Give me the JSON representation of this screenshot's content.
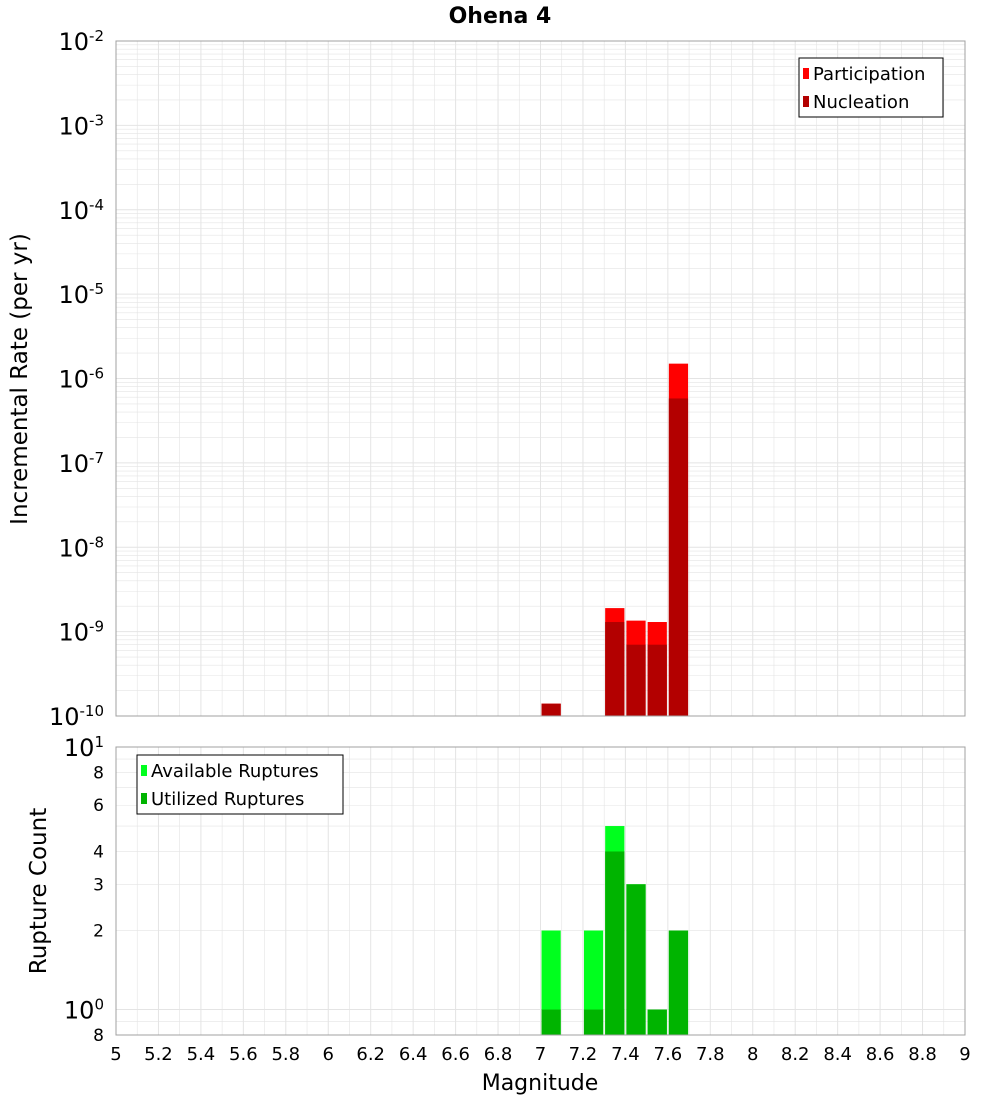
{
  "title": "Ohena 4",
  "colors": {
    "participation": "#ff0000",
    "nucleation": "#b30000",
    "available": "#00ff1e",
    "utilized": "#00b400",
    "grid": "#e4e4e4",
    "frame": "#a0a0a0"
  },
  "xlabel": "Magnitude",
  "chart_data": [
    {
      "type": "bar",
      "title": "Ohena 4",
      "ylabel": "Incremental Rate (per yr)",
      "y_scale": "log",
      "ylim": [
        1e-10,
        0.01
      ],
      "xlim": [
        5,
        9
      ],
      "grid": true,
      "legend_position": "top-right",
      "y_ticks": [
        {
          "base": "10",
          "exp": "-10"
        },
        {
          "base": "10",
          "exp": "-9"
        },
        {
          "base": "10",
          "exp": "-8"
        },
        {
          "base": "10",
          "exp": "-7"
        },
        {
          "base": "10",
          "exp": "-6"
        },
        {
          "base": "10",
          "exp": "-5"
        },
        {
          "base": "10",
          "exp": "-4"
        },
        {
          "base": "10",
          "exp": "-3"
        },
        {
          "base": "10",
          "exp": "-2"
        }
      ],
      "series": [
        {
          "name": "Participation",
          "color": "#ff0000",
          "points": [
            {
              "x": 7.05,
              "y": 1.4e-10
            },
            {
              "x": 7.35,
              "y": 1.9e-09
            },
            {
              "x": 7.45,
              "y": 1.35e-09
            },
            {
              "x": 7.55,
              "y": 1.3e-09
            },
            {
              "x": 7.65,
              "y": 1.5e-06
            }
          ]
        },
        {
          "name": "Nucleation",
          "color": "#b30000",
          "points": [
            {
              "x": 7.05,
              "y": 1.4e-10
            },
            {
              "x": 7.35,
              "y": 1.3e-09
            },
            {
              "x": 7.45,
              "y": 7e-10
            },
            {
              "x": 7.55,
              "y": 7e-10
            },
            {
              "x": 7.65,
              "y": 5.8e-07
            }
          ]
        }
      ]
    },
    {
      "type": "bar",
      "ylabel": "Rupture Count",
      "xlabel": "Magnitude",
      "y_scale": "log",
      "ylim": [
        0.8,
        10
      ],
      "xlim": [
        5,
        9
      ],
      "grid": true,
      "legend_position": "top-left",
      "y_ticks": [
        {
          "value": 0.8,
          "base": "8",
          "exp": ""
        },
        {
          "value": 1,
          "base": "10",
          "exp": "0"
        },
        {
          "value": 2,
          "base": "2",
          "exp": ""
        },
        {
          "value": 3,
          "base": "3",
          "exp": ""
        },
        {
          "value": 4,
          "base": "4",
          "exp": ""
        },
        {
          "value": 6,
          "base": "6",
          "exp": ""
        },
        {
          "value": 8,
          "base": "8",
          "exp": ""
        },
        {
          "value": 10,
          "base": "10",
          "exp": "1"
        }
      ],
      "x_ticks": [
        "5",
        "5.2",
        "5.4",
        "5.6",
        "5.8",
        "6",
        "6.2",
        "6.4",
        "6.6",
        "6.8",
        "7",
        "7.2",
        "7.4",
        "7.6",
        "7.8",
        "8",
        "8.2",
        "8.4",
        "8.6",
        "8.8",
        "9"
      ],
      "series": [
        {
          "name": "Available Ruptures",
          "color": "#00ff1e",
          "points": [
            {
              "x": 7.05,
              "y": 2
            },
            {
              "x": 7.25,
              "y": 2
            },
            {
              "x": 7.35,
              "y": 5
            },
            {
              "x": 7.45,
              "y": 3
            },
            {
              "x": 7.55,
              "y": 1
            },
            {
              "x": 7.65,
              "y": 2
            }
          ]
        },
        {
          "name": "Utilized Ruptures",
          "color": "#00b400",
          "points": [
            {
              "x": 7.05,
              "y": 1
            },
            {
              "x": 7.25,
              "y": 1
            },
            {
              "x": 7.35,
              "y": 4
            },
            {
              "x": 7.45,
              "y": 3
            },
            {
              "x": 7.55,
              "y": 1
            },
            {
              "x": 7.65,
              "y": 2
            }
          ]
        }
      ]
    }
  ]
}
